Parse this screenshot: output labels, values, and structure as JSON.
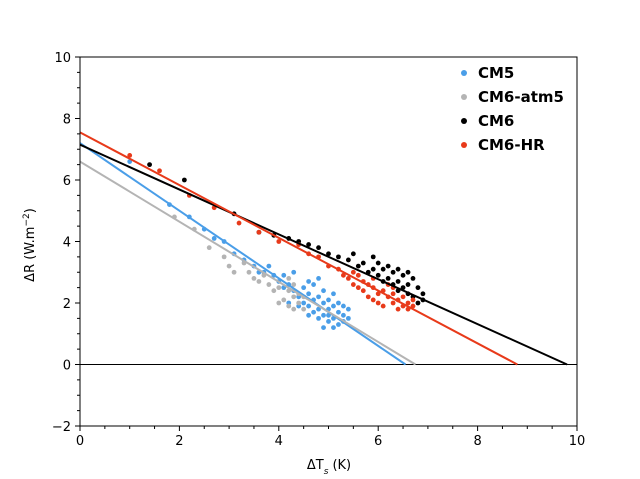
{
  "chart_data": {
    "type": "scatter",
    "xlabel": "ΔT",
    "xlabel_sub": "s",
    "xlabel_unit": "(K)",
    "ylabel": "ΔR (W.m",
    "ylabel_sup": "−2",
    "ylabel_close": ")",
    "xlim": [
      0,
      10
    ],
    "ylim": [
      -2,
      10
    ],
    "xticks": [
      0,
      2,
      4,
      6,
      8,
      10
    ],
    "yticks": [
      -2,
      0,
      2,
      4,
      6,
      8,
      10
    ],
    "xtick_labels": [
      "0",
      "2",
      "4",
      "6",
      "8",
      "10"
    ],
    "ytick_labels": [
      "−2",
      "0",
      "2",
      "4",
      "6",
      "8",
      "10"
    ],
    "grid": false,
    "zero_line": 0,
    "legend": "top-right",
    "series": [
      {
        "name": "CM5",
        "color": "#4a9ee8",
        "fit": {
          "x0": 0,
          "y0": 7.2,
          "x1": 6.55,
          "y1": 0
        },
        "points": [
          [
            1.0,
            6.6
          ],
          [
            1.8,
            5.2
          ],
          [
            2.2,
            4.8
          ],
          [
            2.5,
            4.4
          ],
          [
            2.7,
            4.1
          ],
          [
            2.9,
            4.0
          ],
          [
            3.1,
            3.6
          ],
          [
            3.3,
            3.4
          ],
          [
            3.5,
            3.2
          ],
          [
            3.6,
            3.0
          ],
          [
            3.7,
            3.0
          ],
          [
            3.8,
            3.2
          ],
          [
            3.9,
            2.9
          ],
          [
            4.0,
            2.7
          ],
          [
            4.1,
            2.5
          ],
          [
            4.1,
            2.9
          ],
          [
            4.2,
            2.6
          ],
          [
            4.3,
            2.4
          ],
          [
            4.3,
            3.0
          ],
          [
            4.4,
            2.2
          ],
          [
            4.5,
            2.5
          ],
          [
            4.5,
            2.0
          ],
          [
            4.6,
            2.3
          ],
          [
            4.6,
            1.9
          ],
          [
            4.7,
            2.1
          ],
          [
            4.7,
            1.7
          ],
          [
            4.7,
            2.6
          ],
          [
            4.8,
            1.8
          ],
          [
            4.8,
            2.2
          ],
          [
            4.8,
            1.5
          ],
          [
            4.9,
            2.0
          ],
          [
            4.9,
            1.6
          ],
          [
            4.9,
            2.4
          ],
          [
            5.0,
            1.8
          ],
          [
            5.0,
            1.4
          ],
          [
            5.0,
            2.1
          ],
          [
            5.0,
            1.6
          ],
          [
            5.1,
            1.9
          ],
          [
            5.1,
            1.5
          ],
          [
            5.1,
            2.3
          ],
          [
            5.2,
            1.7
          ],
          [
            5.2,
            1.3
          ],
          [
            5.2,
            2.0
          ],
          [
            5.3,
            1.6
          ],
          [
            5.3,
            1.9
          ],
          [
            5.3,
            1.4
          ],
          [
            5.4,
            1.5
          ],
          [
            5.4,
            1.8
          ],
          [
            4.6,
            1.6
          ],
          [
            4.4,
            1.9
          ],
          [
            4.2,
            2.0
          ],
          [
            4.9,
            1.2
          ],
          [
            5.1,
            1.2
          ],
          [
            4.8,
            2.8
          ],
          [
            4.6,
            2.7
          ]
        ]
      },
      {
        "name": "CM6-atm5",
        "color": "#b4b4b4",
        "fit": {
          "x0": 0,
          "y0": 6.6,
          "x1": 6.75,
          "y1": 0
        },
        "points": [
          [
            1.9,
            4.8
          ],
          [
            2.3,
            4.4
          ],
          [
            2.6,
            3.8
          ],
          [
            2.9,
            3.5
          ],
          [
            3.0,
            3.2
          ],
          [
            3.1,
            3.0
          ],
          [
            3.3,
            3.3
          ],
          [
            3.4,
            3.0
          ],
          [
            3.5,
            2.8
          ],
          [
            3.6,
            2.7
          ],
          [
            3.7,
            2.9
          ],
          [
            3.8,
            2.6
          ],
          [
            3.9,
            2.4
          ],
          [
            4.0,
            2.5
          ],
          [
            4.1,
            2.1
          ],
          [
            4.2,
            2.4
          ],
          [
            4.2,
            1.9
          ],
          [
            4.3,
            2.2
          ],
          [
            4.3,
            2.6
          ],
          [
            4.4,
            2.0
          ],
          [
            4.4,
            2.3
          ],
          [
            4.5,
            1.8
          ],
          [
            4.5,
            2.2
          ],
          [
            4.3,
            1.8
          ],
          [
            4.2,
            2.8
          ],
          [
            4.0,
            2.0
          ]
        ]
      },
      {
        "name": "CM6",
        "color": "#000000",
        "fit": {
          "x0": 0,
          "y0": 7.15,
          "x1": 9.8,
          "y1": 0
        },
        "points": [
          [
            1.4,
            6.5
          ],
          [
            2.1,
            6.0
          ],
          [
            3.1,
            4.9
          ],
          [
            3.6,
            4.3
          ],
          [
            3.9,
            4.2
          ],
          [
            4.2,
            4.1
          ],
          [
            4.4,
            4.0
          ],
          [
            4.6,
            3.9
          ],
          [
            4.8,
            3.8
          ],
          [
            5.0,
            3.6
          ],
          [
            5.2,
            3.5
          ],
          [
            5.4,
            3.4
          ],
          [
            5.6,
            3.2
          ],
          [
            5.7,
            3.3
          ],
          [
            5.8,
            3.0
          ],
          [
            5.9,
            3.1
          ],
          [
            6.0,
            2.9
          ],
          [
            6.0,
            3.3
          ],
          [
            6.1,
            2.7
          ],
          [
            6.1,
            3.1
          ],
          [
            6.2,
            2.8
          ],
          [
            6.2,
            3.2
          ],
          [
            6.3,
            2.6
          ],
          [
            6.3,
            3.0
          ],
          [
            6.4,
            2.7
          ],
          [
            6.4,
            2.4
          ],
          [
            6.5,
            2.9
          ],
          [
            6.5,
            2.5
          ],
          [
            6.6,
            2.6
          ],
          [
            6.6,
            2.3
          ],
          [
            6.7,
            2.8
          ],
          [
            6.7,
            2.2
          ],
          [
            6.8,
            2.5
          ],
          [
            6.8,
            2.0
          ],
          [
            6.9,
            2.3
          ],
          [
            6.9,
            2.1
          ],
          [
            5.5,
            3.6
          ],
          [
            5.9,
            3.5
          ],
          [
            6.4,
            3.1
          ],
          [
            6.6,
            3.0
          ]
        ]
      },
      {
        "name": "CM6-HR",
        "color": "#e83a1a",
        "fit": {
          "x0": 0,
          "y0": 7.55,
          "x1": 8.8,
          "y1": 0
        },
        "points": [
          [
            1.0,
            6.8
          ],
          [
            1.6,
            6.3
          ],
          [
            2.2,
            5.5
          ],
          [
            2.7,
            5.1
          ],
          [
            3.2,
            4.6
          ],
          [
            3.6,
            4.3
          ],
          [
            4.0,
            4.0
          ],
          [
            4.4,
            3.9
          ],
          [
            4.6,
            3.6
          ],
          [
            4.8,
            3.5
          ],
          [
            5.0,
            3.2
          ],
          [
            5.2,
            3.1
          ],
          [
            5.3,
            2.9
          ],
          [
            5.4,
            2.8
          ],
          [
            5.5,
            2.6
          ],
          [
            5.5,
            3.0
          ],
          [
            5.6,
            2.5
          ],
          [
            5.6,
            2.9
          ],
          [
            5.7,
            2.4
          ],
          [
            5.7,
            2.7
          ],
          [
            5.8,
            2.2
          ],
          [
            5.8,
            2.6
          ],
          [
            5.9,
            2.1
          ],
          [
            5.9,
            2.5
          ],
          [
            6.0,
            2.3
          ],
          [
            6.0,
            2.0
          ],
          [
            6.1,
            2.4
          ],
          [
            6.1,
            1.9
          ],
          [
            6.2,
            2.2
          ],
          [
            6.2,
            2.6
          ],
          [
            6.3,
            2.0
          ],
          [
            6.3,
            2.3
          ],
          [
            6.4,
            1.8
          ],
          [
            6.4,
            2.1
          ],
          [
            6.5,
            1.9
          ],
          [
            6.5,
            2.2
          ],
          [
            6.6,
            2.0
          ],
          [
            6.6,
            1.8
          ],
          [
            6.7,
            1.9
          ],
          [
            6.7,
            2.1
          ],
          [
            5.9,
            2.8
          ],
          [
            6.3,
            2.5
          ]
        ]
      }
    ]
  }
}
